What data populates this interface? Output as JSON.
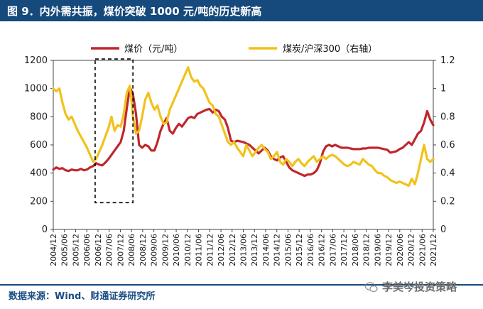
{
  "header": {
    "title": "图 9．内外需共振，煤价突破 1000 元/吨的历史新高"
  },
  "footer": {
    "source": "数据来源：Wind、财通证券研究所",
    "watermark": "李美岑投资策略"
  },
  "colors": {
    "header_bg": "#16497c",
    "coal": "#c0272d",
    "ratio": "#f1c21b",
    "box": "#000000"
  },
  "chart_data": {
    "type": "line",
    "title": "",
    "x": [
      "2004/12",
      "2005/06",
      "2005/12",
      "2006/06",
      "2006/12",
      "2007/06",
      "2007/12",
      "2008/06",
      "2008/12",
      "2009/06",
      "2009/12",
      "2010/06",
      "2010/12",
      "2011/06",
      "2011/12",
      "2012/06",
      "2012/12",
      "2013/06",
      "2013/12",
      "2014/06",
      "2014/12",
      "2015/06",
      "2015/12",
      "2016/06",
      "2016/12",
      "2017/06",
      "2017/12",
      "2018/06",
      "2018/12",
      "2019/06",
      "2019/12",
      "2020/06",
      "2020/12",
      "2021/06",
      "2021/12"
    ],
    "y_left": {
      "range": [
        0,
        1200
      ],
      "ticks": [
        "0",
        "200",
        "400",
        "600",
        "800",
        "1000",
        "1200"
      ]
    },
    "y_right": {
      "range": [
        0,
        1.2
      ],
      "ticks": [
        "0",
        "0.2",
        "0.4",
        "0.6",
        "0.8",
        "1",
        "1.2"
      ],
      "label": "右轴"
    },
    "legend": {
      "placement": "top",
      "coal_label": "煤价（元/吨）",
      "ratio_label": "煤炭/沪深300（右轴）"
    },
    "highlight_box": {
      "x_from": "2006/12",
      "x_to": "2008/06",
      "y_from": 190,
      "y_to": 1210,
      "style": "dashed"
    },
    "series": [
      {
        "name": "煤价（元/吨）",
        "axis": "left",
        "values": [
          [
            0,
            425
          ],
          [
            1,
            440
          ],
          [
            2,
            430
          ],
          [
            3,
            435
          ],
          [
            4,
            420
          ],
          [
            5,
            415
          ],
          [
            6,
            425
          ],
          [
            7,
            420
          ],
          [
            8,
            420
          ],
          [
            9,
            430
          ],
          [
            10,
            420
          ],
          [
            11,
            425
          ],
          [
            12,
            440
          ],
          [
            13,
            450
          ],
          [
            14,
            470
          ],
          [
            15,
            460
          ],
          [
            16,
            455
          ],
          [
            17,
            475
          ],
          [
            18,
            500
          ],
          [
            19,
            530
          ],
          [
            20,
            560
          ],
          [
            21,
            590
          ],
          [
            22,
            620
          ],
          [
            23,
            700
          ],
          [
            24,
            860
          ],
          [
            25,
            1010
          ],
          [
            26,
            960
          ],
          [
            27,
            820
          ],
          [
            28,
            600
          ],
          [
            29,
            580
          ],
          [
            30,
            600
          ],
          [
            31,
            590
          ],
          [
            32,
            560
          ],
          [
            33,
            560
          ],
          [
            34,
            620
          ],
          [
            35,
            700
          ],
          [
            36,
            750
          ],
          [
            37,
            790
          ],
          [
            38,
            700
          ],
          [
            39,
            680
          ],
          [
            40,
            720
          ],
          [
            41,
            750
          ],
          [
            42,
            730
          ],
          [
            43,
            760
          ],
          [
            44,
            790
          ],
          [
            45,
            800
          ],
          [
            46,
            790
          ],
          [
            47,
            820
          ],
          [
            48,
            830
          ],
          [
            49,
            840
          ],
          [
            50,
            850
          ],
          [
            51,
            855
          ],
          [
            52,
            830
          ],
          [
            53,
            850
          ],
          [
            54,
            840
          ],
          [
            55,
            800
          ],
          [
            56,
            780
          ],
          [
            57,
            720
          ],
          [
            58,
            630
          ],
          [
            59,
            620
          ],
          [
            60,
            630
          ],
          [
            61,
            625
          ],
          [
            62,
            620
          ],
          [
            63,
            610
          ],
          [
            64,
            600
          ],
          [
            65,
            580
          ],
          [
            66,
            560
          ],
          [
            67,
            540
          ],
          [
            68,
            560
          ],
          [
            69,
            580
          ],
          [
            70,
            560
          ],
          [
            71,
            520
          ],
          [
            72,
            500
          ],
          [
            73,
            490
          ],
          [
            74,
            510
          ],
          [
            75,
            520
          ],
          [
            76,
            480
          ],
          [
            77,
            440
          ],
          [
            78,
            420
          ],
          [
            79,
            410
          ],
          [
            80,
            400
          ],
          [
            81,
            390
          ],
          [
            82,
            380
          ],
          [
            83,
            390
          ],
          [
            84,
            390
          ],
          [
            85,
            400
          ],
          [
            86,
            420
          ],
          [
            87,
            470
          ],
          [
            88,
            550
          ],
          [
            89,
            590
          ],
          [
            90,
            600
          ],
          [
            91,
            590
          ],
          [
            92,
            600
          ],
          [
            93,
            590
          ],
          [
            94,
            580
          ],
          [
            95,
            580
          ],
          [
            96,
            580
          ],
          [
            97,
            575
          ],
          [
            98,
            570
          ],
          [
            99,
            570
          ],
          [
            100,
            570
          ],
          [
            101,
            575
          ],
          [
            102,
            575
          ],
          [
            103,
            580
          ],
          [
            104,
            580
          ],
          [
            105,
            580
          ],
          [
            106,
            580
          ],
          [
            107,
            575
          ],
          [
            108,
            570
          ],
          [
            109,
            565
          ],
          [
            110,
            545
          ],
          [
            111,
            550
          ],
          [
            112,
            555
          ],
          [
            113,
            570
          ],
          [
            114,
            580
          ],
          [
            115,
            600
          ],
          [
            116,
            620
          ],
          [
            117,
            600
          ],
          [
            118,
            640
          ],
          [
            119,
            680
          ],
          [
            120,
            700
          ],
          [
            121,
            760
          ],
          [
            122,
            840
          ],
          [
            123,
            780
          ],
          [
            124,
            740
          ]
        ]
      },
      {
        "name": "煤炭/沪深300（右轴）",
        "axis": "right",
        "values": [
          [
            0,
            1.0
          ],
          [
            1,
            0.98
          ],
          [
            2,
            1.0
          ],
          [
            3,
            0.9
          ],
          [
            4,
            0.82
          ],
          [
            5,
            0.78
          ],
          [
            6,
            0.8
          ],
          [
            7,
            0.75
          ],
          [
            8,
            0.7
          ],
          [
            9,
            0.66
          ],
          [
            10,
            0.62
          ],
          [
            11,
            0.58
          ],
          [
            12,
            0.53
          ],
          [
            13,
            0.48
          ],
          [
            14,
            0.5
          ],
          [
            15,
            0.55
          ],
          [
            16,
            0.6
          ],
          [
            17,
            0.66
          ],
          [
            18,
            0.72
          ],
          [
            19,
            0.8
          ],
          [
            20,
            0.7
          ],
          [
            21,
            0.74
          ],
          [
            22,
            0.73
          ],
          [
            23,
            0.82
          ],
          [
            24,
            0.97
          ],
          [
            25,
            1.02
          ],
          [
            26,
            0.8
          ],
          [
            27,
            0.68
          ],
          [
            28,
            0.7
          ],
          [
            29,
            0.8
          ],
          [
            30,
            0.92
          ],
          [
            31,
            0.97
          ],
          [
            32,
            0.9
          ],
          [
            33,
            0.85
          ],
          [
            34,
            0.88
          ],
          [
            35,
            0.8
          ],
          [
            36,
            0.75
          ],
          [
            37,
            0.76
          ],
          [
            38,
            0.85
          ],
          [
            39,
            0.9
          ],
          [
            40,
            0.95
          ],
          [
            41,
            1.0
          ],
          [
            42,
            1.05
          ],
          [
            43,
            1.1
          ],
          [
            44,
            1.15
          ],
          [
            45,
            1.08
          ],
          [
            46,
            1.05
          ],
          [
            47,
            1.06
          ],
          [
            48,
            1.02
          ],
          [
            49,
            1.0
          ],
          [
            50,
            0.95
          ],
          [
            51,
            0.9
          ],
          [
            52,
            0.88
          ],
          [
            53,
            0.82
          ],
          [
            54,
            0.8
          ],
          [
            55,
            0.74
          ],
          [
            56,
            0.68
          ],
          [
            57,
            0.62
          ],
          [
            58,
            0.6
          ],
          [
            59,
            0.62
          ],
          [
            60,
            0.58
          ],
          [
            61,
            0.55
          ],
          [
            62,
            0.52
          ],
          [
            63,
            0.6
          ],
          [
            64,
            0.56
          ],
          [
            65,
            0.52
          ],
          [
            66,
            0.55
          ],
          [
            67,
            0.58
          ],
          [
            68,
            0.6
          ],
          [
            69,
            0.57
          ],
          [
            70,
            0.55
          ],
          [
            71,
            0.5
          ],
          [
            72,
            0.52
          ],
          [
            73,
            0.55
          ],
          [
            74,
            0.48
          ],
          [
            75,
            0.46
          ],
          [
            76,
            0.5
          ],
          [
            77,
            0.48
          ],
          [
            78,
            0.45
          ],
          [
            79,
            0.48
          ],
          [
            80,
            0.5
          ],
          [
            81,
            0.47
          ],
          [
            82,
            0.45
          ],
          [
            83,
            0.48
          ],
          [
            84,
            0.5
          ],
          [
            85,
            0.52
          ],
          [
            86,
            0.48
          ],
          [
            87,
            0.5
          ],
          [
            88,
            0.52
          ],
          [
            89,
            0.5
          ],
          [
            90,
            0.52
          ],
          [
            91,
            0.53
          ],
          [
            92,
            0.52
          ],
          [
            93,
            0.5
          ],
          [
            94,
            0.48
          ],
          [
            95,
            0.46
          ],
          [
            96,
            0.45
          ],
          [
            97,
            0.46
          ],
          [
            98,
            0.48
          ],
          [
            99,
            0.47
          ],
          [
            100,
            0.46
          ],
          [
            101,
            0.5
          ],
          [
            102,
            0.48
          ],
          [
            103,
            0.46
          ],
          [
            104,
            0.45
          ],
          [
            105,
            0.42
          ],
          [
            106,
            0.4
          ],
          [
            107,
            0.4
          ],
          [
            108,
            0.38
          ],
          [
            109,
            0.37
          ],
          [
            110,
            0.35
          ],
          [
            111,
            0.34
          ],
          [
            112,
            0.33
          ],
          [
            113,
            0.34
          ],
          [
            114,
            0.33
          ],
          [
            115,
            0.32
          ],
          [
            116,
            0.31
          ],
          [
            117,
            0.36
          ],
          [
            118,
            0.32
          ],
          [
            119,
            0.4
          ],
          [
            120,
            0.5
          ],
          [
            121,
            0.6
          ],
          [
            122,
            0.5
          ],
          [
            123,
            0.48
          ],
          [
            124,
            0.5
          ]
        ]
      }
    ]
  }
}
